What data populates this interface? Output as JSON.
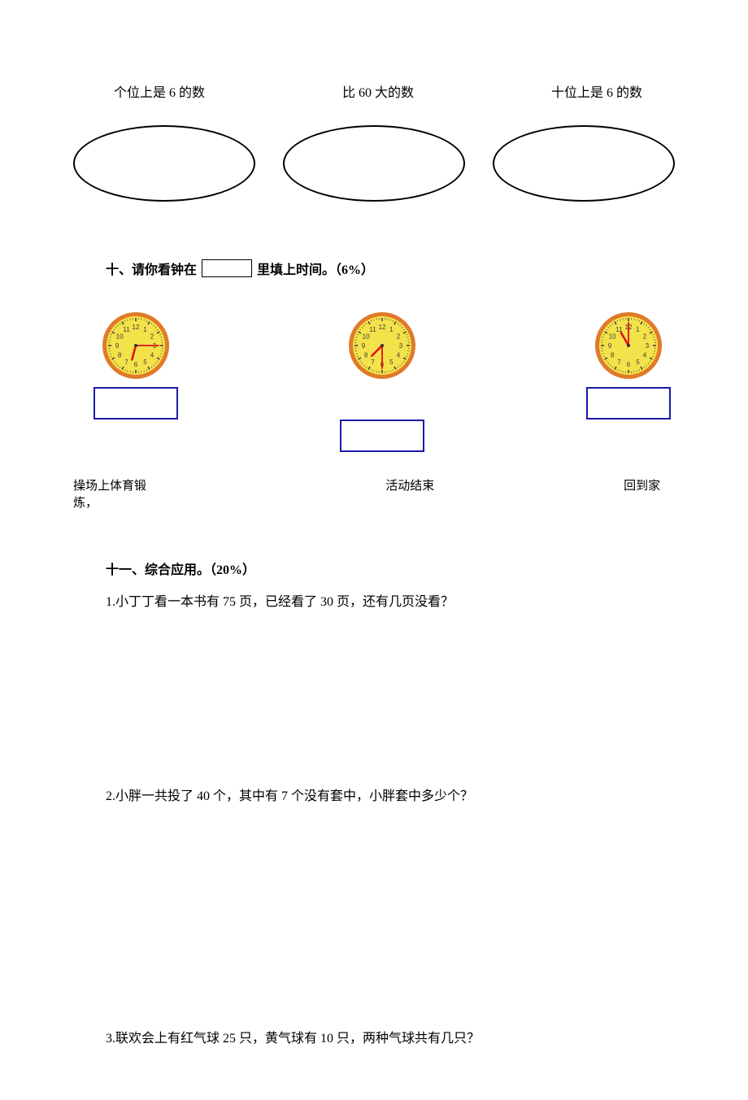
{
  "section9": {
    "labels": {
      "left": "个位上是 6 的数",
      "middle": "比 60 大的数",
      "right": "十位上是 6 的数"
    }
  },
  "section10": {
    "prefix": "十、请你看钟在",
    "suffix": "里填上时间。（6%）",
    "clocks": {
      "clock1": {
        "face_color": "#f4e24a",
        "rim_color": "#e07a2a",
        "tick_color": "#3a3a3a",
        "number_color": "#3a3a3a",
        "hour_hand_color": "#d11",
        "minute_hand_color": "#d11",
        "hour_angle": 195,
        "minute_angle": 90,
        "caption": "操场上体育锻炼，"
      },
      "clock2": {
        "face_color": "#f4e24a",
        "rim_color": "#e07a2a",
        "tick_color": "#3a3a3a",
        "number_color": "#3a3a3a",
        "hour_hand_color": "#d11",
        "minute_hand_color": "#d11",
        "hour_angle": 225,
        "minute_angle": 180,
        "caption": "活动结束"
      },
      "clock3": {
        "face_color": "#f4e24a",
        "rim_color": "#e07a2a",
        "tick_color": "#3a3a3a",
        "number_color": "#3a3a3a",
        "hour_hand_color": "#d11",
        "minute_hand_color": "#d11",
        "hour_angle": 330,
        "minute_angle": 0,
        "caption": "回到家"
      }
    },
    "answer_box_border": "#1a1aaa"
  },
  "section11": {
    "title": "十一、综合应用。（20%）",
    "q1": "1.小丁丁看一本书有 75 页，已经看了 30 页，还有几页没看？",
    "q2": "2.小胖一共投了 40 个，其中有 7 个没有套中，小胖套中多少个？",
    "q3": "3.联欢会上有红气球 25 只，黄气球有 10 只，两种气球共有几只？"
  }
}
